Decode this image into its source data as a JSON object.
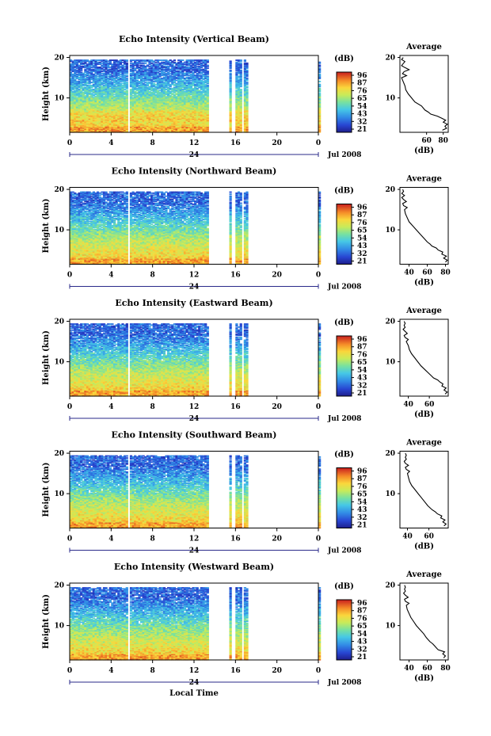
{
  "figure": {
    "xlabel": "Local Time",
    "date_label": "Jul 2008",
    "day_label": "24",
    "cbar_unit": "(dB)",
    "avg_xlabel": "(dB)",
    "avg_title": "Average",
    "ylabel": "Height (km)"
  },
  "chart_data": [
    {
      "type": "heatmap",
      "title": "Echo Intensity (Vertical Beam)",
      "ylabel": "Height (km)",
      "x_ticks": [
        "0",
        "4",
        "8",
        "12",
        "16",
        "20",
        "0"
      ],
      "xlim": [
        0,
        24
      ],
      "ylim": [
        1.5,
        20.5
      ],
      "y_ticks": [
        "20",
        "10"
      ],
      "gaps": [
        [
          5.6,
          5.75
        ],
        [
          11.9,
          12.05
        ],
        [
          13.3,
          15.3
        ],
        [
          15.6,
          16.05
        ],
        [
          16.55,
          16.8
        ],
        [
          17.2,
          24
        ]
      ],
      "colorbar": {
        "unit": "(dB)",
        "ticks": [
          "96",
          "87",
          "76",
          "65",
          "54",
          "43",
          "32",
          "21"
        ]
      },
      "average": {
        "title": "Average",
        "xlabel": "(dB)",
        "x_ticks": [
          "60",
          "80"
        ],
        "xlim": [
          28,
          86
        ],
        "ylim": [
          1.5,
          20.5
        ],
        "heights": [
          2,
          2.5,
          3,
          3.5,
          4,
          4.5,
          5,
          5.5,
          6,
          6.5,
          7,
          8,
          9,
          10,
          11,
          12,
          13,
          14,
          15,
          15.5,
          16,
          16.5,
          17,
          17.5,
          18,
          18.5,
          19,
          19.5,
          20
        ],
        "values": [
          79,
          84,
          82,
          85,
          80,
          83,
          78,
          73,
          65,
          62,
          58,
          54,
          46,
          42,
          38,
          35,
          34,
          32,
          30,
          36,
          31,
          33,
          39,
          34,
          30,
          32,
          34,
          30,
          32
        ]
      }
    },
    {
      "type": "heatmap",
      "title": "Echo Intensity (Northward Beam)",
      "ylabel": "Height (km)",
      "x_ticks": [
        "0",
        "4",
        "8",
        "12",
        "16",
        "20",
        "0"
      ],
      "xlim": [
        0,
        24
      ],
      "ylim": [
        1.5,
        20.5
      ],
      "y_ticks": [
        "20",
        "10"
      ],
      "gaps": [
        [
          5.6,
          5.75
        ],
        [
          11.9,
          12.05
        ],
        [
          13.3,
          15.3
        ],
        [
          15.6,
          16.05
        ],
        [
          16.55,
          16.8
        ],
        [
          17.2,
          24
        ]
      ],
      "colorbar": {
        "unit": "(dB)",
        "ticks": [
          "96",
          "87",
          "76",
          "65",
          "54",
          "43",
          "32",
          "21"
        ]
      },
      "average": {
        "title": "Average",
        "xlabel": "(dB)",
        "x_ticks": [
          "40",
          "60",
          "80"
        ],
        "xlim": [
          30,
          83
        ],
        "ylim": [
          1.5,
          20.5
        ],
        "heights": [
          2,
          2.5,
          3,
          3.5,
          4,
          4.5,
          5,
          5.5,
          6,
          6.5,
          7,
          8,
          9,
          10,
          11,
          12,
          13,
          14,
          15,
          15.5,
          16,
          16.5,
          17,
          17.5,
          18,
          18.5,
          19,
          19.5,
          20
        ],
        "values": [
          80,
          82,
          78,
          81,
          76,
          77,
          72,
          70,
          65,
          63,
          60,
          56,
          52,
          48,
          44,
          40,
          38,
          36,
          35,
          38,
          34,
          33,
          37,
          34,
          32,
          35,
          32,
          34,
          33
        ]
      }
    },
    {
      "type": "heatmap",
      "title": "Echo Intensity (Eastward Beam)",
      "ylabel": "Height (km)",
      "x_ticks": [
        "0",
        "4",
        "8",
        "12",
        "16",
        "20",
        "0"
      ],
      "xlim": [
        0,
        24
      ],
      "ylim": [
        1.5,
        20.5
      ],
      "y_ticks": [
        "20",
        "10"
      ],
      "gaps": [
        [
          5.6,
          5.75
        ],
        [
          11.9,
          12.05
        ],
        [
          13.3,
          15.3
        ],
        [
          15.6,
          16.05
        ],
        [
          16.55,
          16.8
        ],
        [
          17.2,
          24
        ]
      ],
      "colorbar": {
        "unit": "(dB)",
        "ticks": [
          "96",
          "87",
          "76",
          "65",
          "54",
          "43",
          "32",
          "21"
        ]
      },
      "average": {
        "title": "Average",
        "xlabel": "(dB)",
        "x_ticks": [
          "40",
          "60"
        ],
        "xlim": [
          32,
          78
        ],
        "ylim": [
          1.5,
          20.5
        ],
        "heights": [
          2,
          2.5,
          3,
          3.5,
          4,
          4.5,
          5,
          5.5,
          6,
          6.5,
          7,
          8,
          9,
          10,
          11,
          12,
          13,
          14,
          15,
          15.5,
          16,
          16.5,
          17,
          17.5,
          18,
          18.5,
          19,
          19.5,
          20
        ],
        "values": [
          75,
          77,
          74,
          76,
          72,
          73,
          70,
          68,
          64,
          62,
          60,
          56,
          52,
          49,
          46,
          43,
          41,
          40,
          38,
          40,
          37,
          36,
          39,
          37,
          35,
          37,
          36,
          37,
          36
        ]
      }
    },
    {
      "type": "heatmap",
      "title": "Echo Intensity (Southward Beam)",
      "ylabel": "Height (km)",
      "x_ticks": [
        "0",
        "4",
        "8",
        "12",
        "16",
        "20",
        "0"
      ],
      "xlim": [
        0,
        24
      ],
      "ylim": [
        1.5,
        20.5
      ],
      "y_ticks": [
        "20",
        "10"
      ],
      "gaps": [
        [
          5.6,
          5.75
        ],
        [
          11.9,
          12.05
        ],
        [
          13.3,
          15.3
        ],
        [
          15.6,
          16.05
        ],
        [
          16.55,
          16.8
        ],
        [
          17.2,
          24
        ]
      ],
      "colorbar": {
        "unit": "(dB)",
        "ticks": [
          "96",
          "87",
          "76",
          "65",
          "54",
          "43",
          "32",
          "21"
        ]
      },
      "average": {
        "title": "Average",
        "xlabel": "(dB)",
        "x_ticks": [
          "40",
          "60"
        ],
        "xlim": [
          33,
          78
        ],
        "ylim": [
          1.5,
          20.5
        ],
        "heights": [
          2,
          2.5,
          3,
          3.5,
          4,
          4.5,
          5,
          5.5,
          6,
          6.5,
          7,
          8,
          9,
          10,
          11,
          12,
          13,
          14,
          15,
          15.5,
          16,
          16.5,
          17,
          17.5,
          18,
          18.5,
          19,
          19.5,
          20
        ],
        "values": [
          74,
          76,
          73,
          75,
          71,
          72,
          68,
          66,
          63,
          61,
          59,
          56,
          53,
          50,
          47,
          44,
          42,
          41,
          40,
          42,
          39,
          38,
          41,
          38,
          37,
          39,
          38,
          39,
          38
        ]
      }
    },
    {
      "type": "heatmap",
      "title": "Echo Intensity (Westward Beam)",
      "ylabel": "Height (km)",
      "x_ticks": [
        "0",
        "4",
        "8",
        "12",
        "16",
        "20",
        "0"
      ],
      "xlim": [
        0,
        24
      ],
      "ylim": [
        1.5,
        20.5
      ],
      "y_ticks": [
        "20",
        "10"
      ],
      "gaps": [
        [
          5.6,
          5.75
        ],
        [
          11.9,
          12.05
        ],
        [
          13.3,
          15.3
        ],
        [
          15.6,
          16.05
        ],
        [
          16.55,
          16.8
        ],
        [
          17.2,
          24
        ]
      ],
      "colorbar": {
        "unit": "(dB)",
        "ticks": [
          "96",
          "87",
          "76",
          "65",
          "54",
          "43",
          "32",
          "21"
        ]
      },
      "average": {
        "title": "Average",
        "xlabel": "(dB)",
        "x_ticks": [
          "40",
          "60",
          "80"
        ],
        "xlim": [
          30,
          83
        ],
        "ylim": [
          1.5,
          20.5
        ],
        "heights": [
          2,
          2.5,
          3,
          3.5,
          4,
          4.5,
          5,
          5.5,
          6,
          6.5,
          7,
          8,
          9,
          10,
          11,
          12,
          13,
          14,
          15,
          15.5,
          16,
          16.5,
          17,
          17.5,
          18,
          18.5,
          19,
          19.5,
          20
        ],
        "values": [
          78,
          80,
          77,
          79,
          72,
          70,
          68,
          66,
          63,
          61,
          59,
          56,
          52,
          48,
          45,
          42,
          40,
          38,
          37,
          40,
          36,
          35,
          39,
          36,
          34,
          36,
          35,
          36,
          35
        ]
      }
    }
  ]
}
